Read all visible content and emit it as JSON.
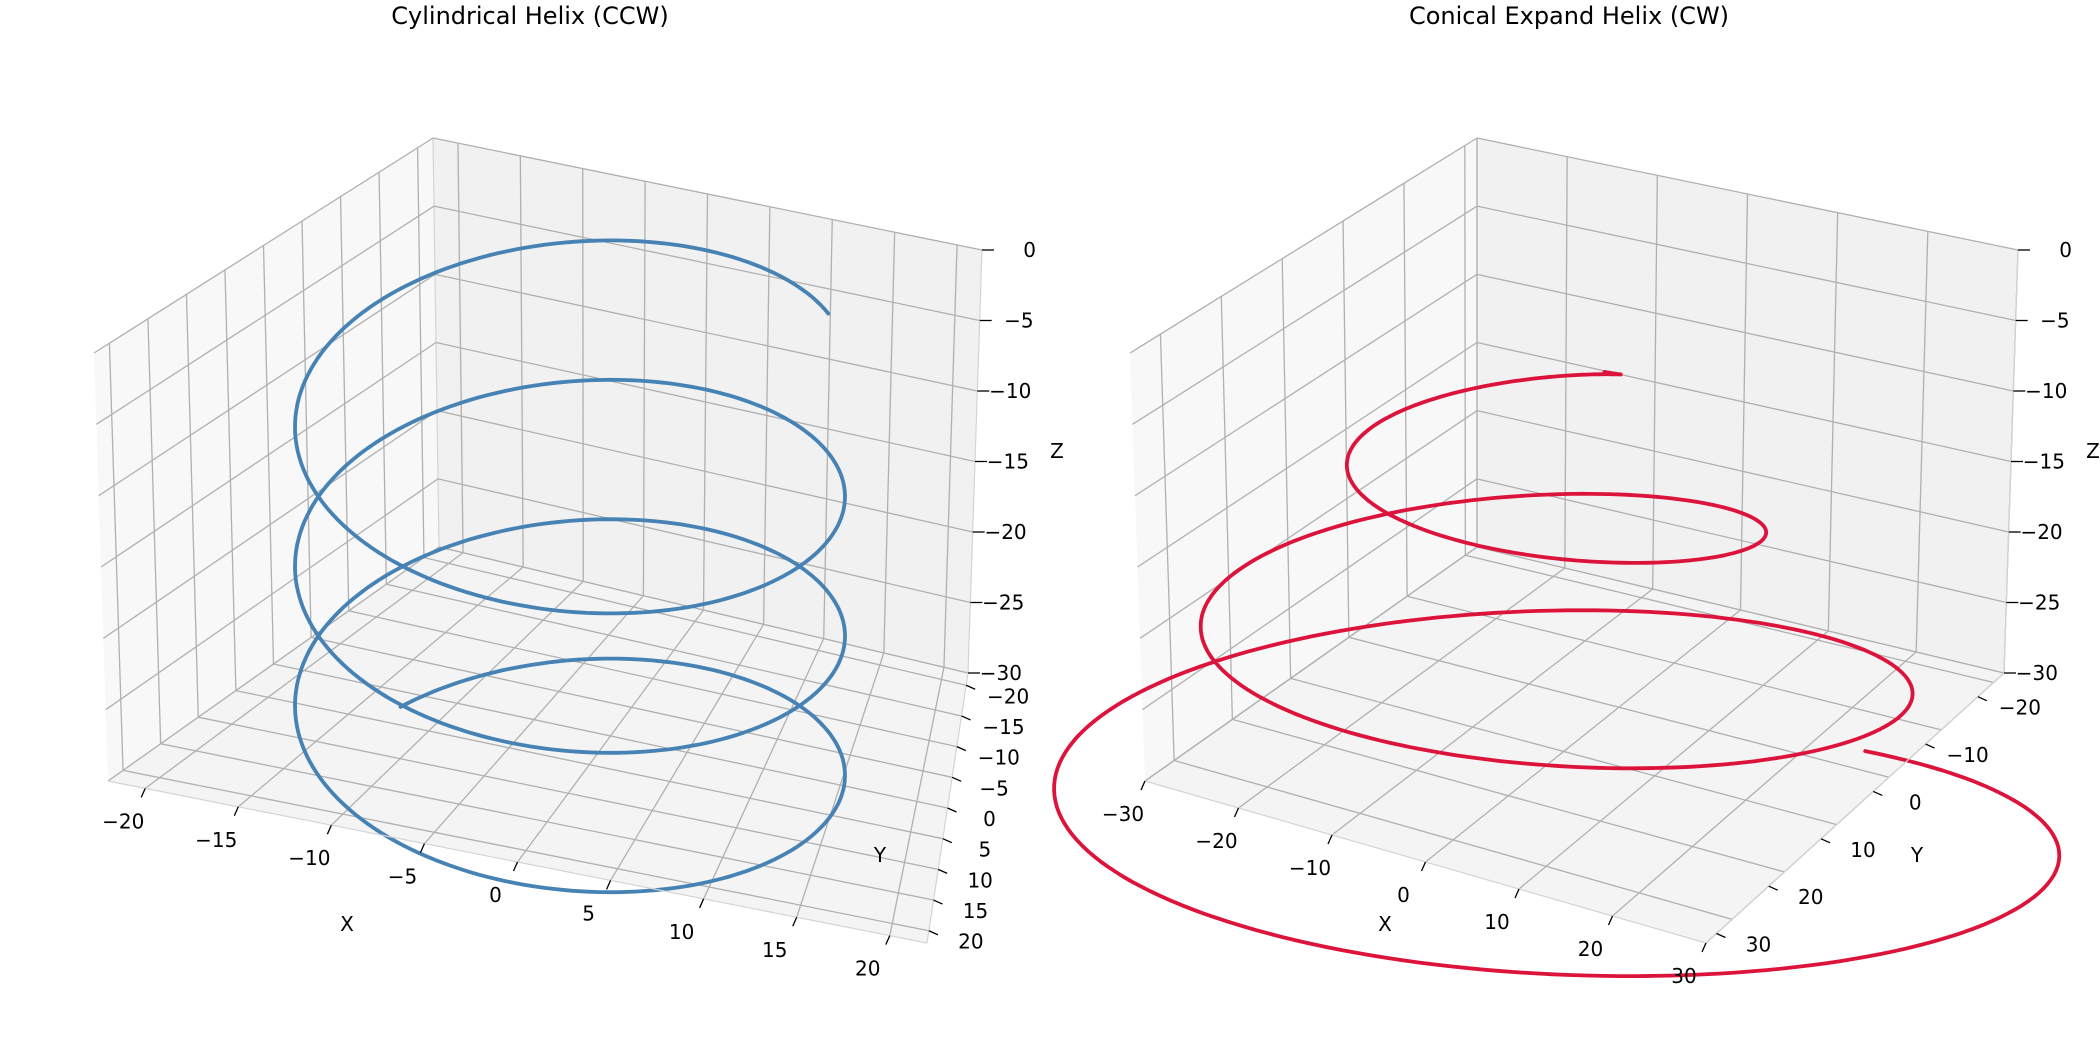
{
  "chart_data": [
    {
      "type": "line3d",
      "title": "Cylindrical Helix (CCW)",
      "xlabel": "X",
      "ylabel": "Y",
      "zlabel": "Z",
      "xlim": [
        -22,
        22
      ],
      "ylim": [
        -22,
        22
      ],
      "zlim": [
        -30,
        0
      ],
      "xticks": [
        -20,
        -15,
        -10,
        -5,
        0,
        5,
        10,
        15,
        20
      ],
      "yticks": [
        -20,
        -15,
        -10,
        -5,
        0,
        5,
        10,
        15,
        20
      ],
      "zticks": [
        -30,
        -25,
        -20,
        -15,
        -10,
        -5,
        0
      ],
      "grid": true,
      "series": [
        {
          "color": "#4682b4",
          "shape": "cylindrical",
          "direction": "ccw",
          "radius": 20,
          "turns": 3.3,
          "z_start": -6.5,
          "z_end": -27.5
        }
      ]
    },
    {
      "type": "line3d",
      "title": "Conical Expand Helix (CW)",
      "xlabel": "X",
      "ylabel": "Y",
      "zlabel": "Z",
      "xlim": [
        -30,
        30
      ],
      "ylim": [
        -25,
        32
      ],
      "zlim": [
        -30,
        0
      ],
      "xticks": [
        -30,
        -20,
        -10,
        0,
        10,
        20,
        30
      ],
      "yticks": [
        -20,
        -10,
        0,
        10,
        20,
        30
      ],
      "zticks": [
        -30,
        -25,
        -20,
        -15,
        -10,
        -5,
        0
      ],
      "grid": true,
      "series": [
        {
          "color": "#dc143c",
          "shape": "conical",
          "direction": "cw",
          "radius_start": 5,
          "radius_end": 31,
          "turns": 3.2,
          "z_start": -5,
          "z_end": -30
        }
      ]
    }
  ]
}
